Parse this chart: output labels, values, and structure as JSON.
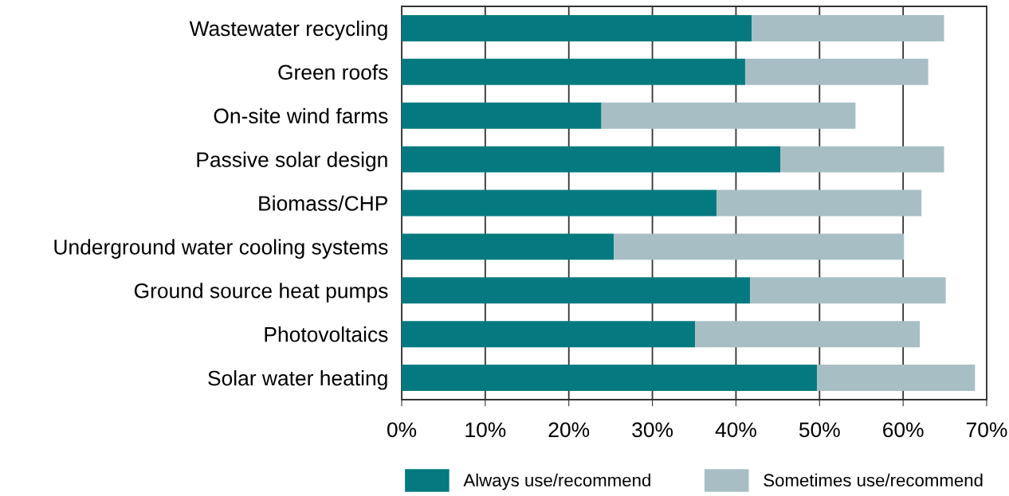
{
  "chart_data": {
    "type": "bar",
    "orientation": "horizontal",
    "stacked": true,
    "categories": [
      "Wastewater recycling",
      "Green roofs",
      "On-site wind farms",
      "Passive solar design",
      "Biomass/CHP",
      "Underground water cooling systems",
      "Ground source heat pumps",
      "Photovoltaics",
      "Solar water heating"
    ],
    "series": [
      {
        "name": "Always use/recommend",
        "color": "#047a80",
        "values": [
          41.9,
          41.1,
          23.9,
          45.3,
          37.7,
          25.4,
          41.7,
          35.1,
          49.7
        ]
      },
      {
        "name": "Sometimes use/recommend",
        "color": "#a7bec4",
        "values": [
          23.0,
          21.9,
          30.4,
          19.6,
          24.5,
          34.7,
          23.4,
          26.9,
          18.9
        ]
      }
    ],
    "xlim": [
      0,
      70
    ],
    "xticks": [
      {
        "value": 0,
        "label": "0%"
      },
      {
        "value": 10,
        "label": "10%"
      },
      {
        "value": 20,
        "label": "20%"
      },
      {
        "value": 30,
        "label": "30%"
      },
      {
        "value": 40,
        "label": "40%"
      },
      {
        "value": 50,
        "label": "50%"
      },
      {
        "value": 60,
        "label": "60%"
      },
      {
        "value": 70,
        "label": "70%"
      }
    ],
    "grid": "x",
    "legend": "bottom"
  }
}
